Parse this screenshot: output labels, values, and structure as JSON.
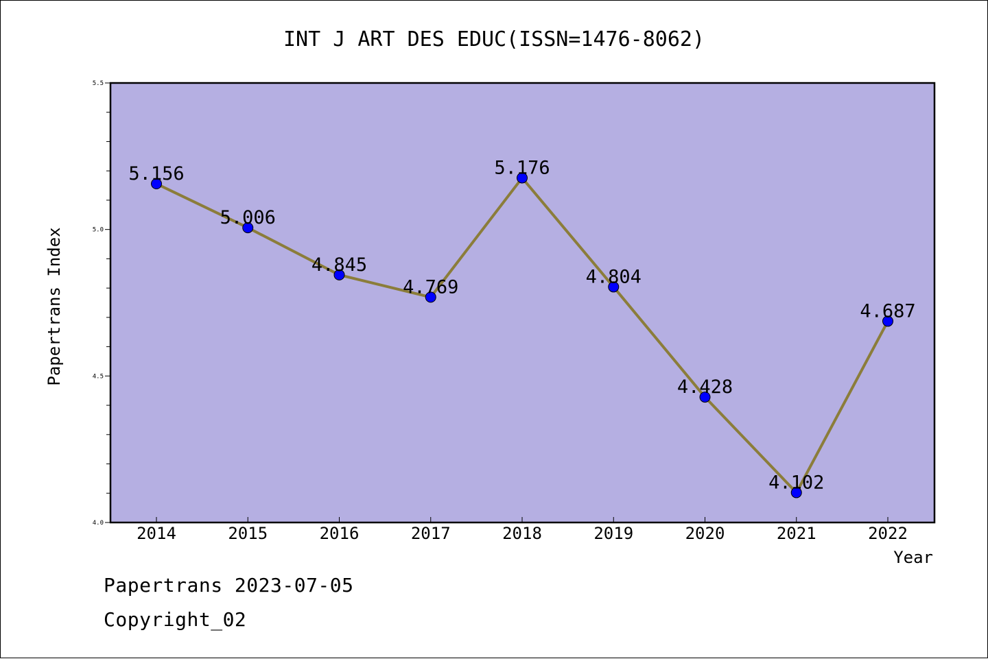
{
  "chart_data": {
    "type": "line",
    "title": "INT J ART DES EDUC(ISSN=1476-8062)",
    "xlabel": "Year",
    "ylabel": "Papertrans Index",
    "categories": [
      "2014",
      "2015",
      "2016",
      "2017",
      "2018",
      "2019",
      "2020",
      "2021",
      "2022"
    ],
    "series": [
      {
        "values": [
          5.156,
          5.006,
          4.845,
          4.769,
          5.176,
          4.804,
          4.428,
          4.102,
          4.687
        ],
        "labels": [
          "5.156",
          "5.006",
          "4.845",
          "4.769",
          "5.176",
          "4.804",
          "4.428",
          "4.102",
          "4.687"
        ],
        "line_color": "#8B7D3A",
        "marker_color": "#0000FF"
      }
    ],
    "ylim": [
      4.0,
      5.5
    ],
    "yticks": [
      "4.0",
      "4.5",
      "5.0",
      "5.5"
    ],
    "plot_background": "#B5AFE2",
    "grid": false
  },
  "footer": {
    "line1": "Papertrans 2023-07-05",
    "line2": "Copyright_02"
  }
}
